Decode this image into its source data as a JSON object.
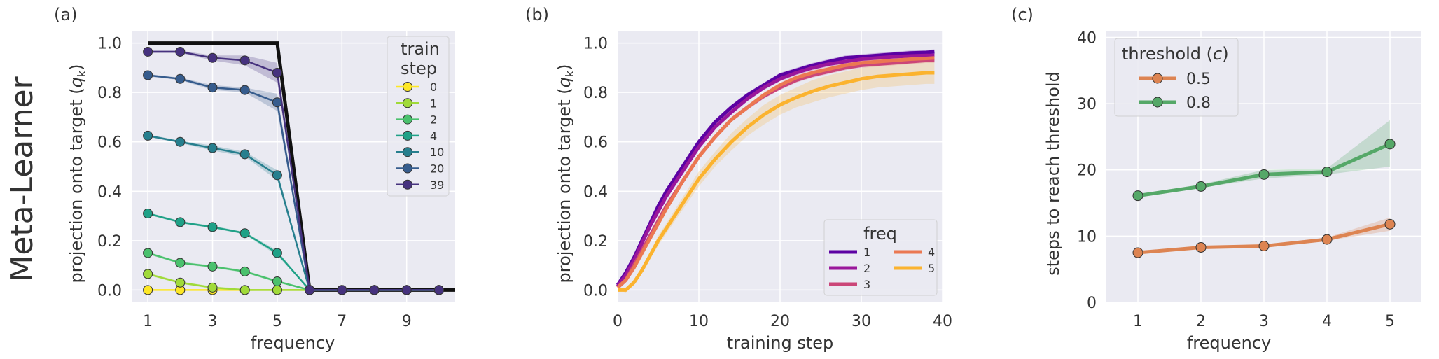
{
  "row_label": "Meta-Learner",
  "colors": {
    "plot_bg": "#eaeaf2",
    "grid": "#ffffff",
    "target_line": "#111111",
    "legend_frame": "#cccccc"
  },
  "chart_data": [
    {
      "panel_label": "(a)",
      "type": "line",
      "xlabel": "frequency",
      "ylabel": "projection onto target (q_k)",
      "ylabel_parts": {
        "main": "projection onto target (",
        "symbol": "q",
        "sub": "k",
        "close": ")"
      },
      "xlim": [
        0.5,
        10.5
      ],
      "ylim": [
        -0.05,
        1.05
      ],
      "xticks": [
        1,
        3,
        5,
        7,
        9
      ],
      "yticks": [
        0.0,
        0.2,
        0.4,
        0.6,
        0.8,
        1.0
      ],
      "ytick_labels": [
        "0.0",
        "0.2",
        "0.4",
        "0.6",
        "0.8",
        "1.0"
      ],
      "x": [
        1,
        2,
        3,
        4,
        5,
        6,
        7,
        8,
        9,
        10
      ],
      "target": {
        "x": [
          1,
          5,
          6,
          10.5
        ],
        "y": [
          1.0,
          1.0,
          0.0,
          0.0
        ]
      },
      "legend": {
        "title_lines": [
          "train",
          "step"
        ],
        "placement": "top-right"
      },
      "series": [
        {
          "name": "0",
          "color": "#fde725",
          "values": [
            0.0,
            0.0,
            0.0,
            0.0,
            0.0,
            0.0,
            0.0,
            0.0,
            0.0,
            0.0
          ],
          "band": [
            0,
            0,
            0,
            0,
            0,
            0,
            0,
            0,
            0,
            0
          ]
        },
        {
          "name": "1",
          "color": "#a0da39",
          "values": [
            0.065,
            0.03,
            0.01,
            0.0,
            0.0,
            0.0,
            0.0,
            0.0,
            0.0,
            0.0
          ],
          "band": [
            0.005,
            0.005,
            0.005,
            0.005,
            0,
            0,
            0,
            0,
            0,
            0
          ]
        },
        {
          "name": "2",
          "color": "#4ac16d",
          "values": [
            0.15,
            0.11,
            0.095,
            0.075,
            0.035,
            0.0,
            0.0,
            0.0,
            0.0,
            0.0
          ],
          "band": [
            0.005,
            0.005,
            0.005,
            0.005,
            0.005,
            0,
            0,
            0,
            0,
            0
          ]
        },
        {
          "name": "4",
          "color": "#1fa187",
          "values": [
            0.31,
            0.275,
            0.255,
            0.23,
            0.15,
            0.0,
            0.0,
            0.0,
            0.0,
            0.0
          ],
          "band": [
            0.005,
            0.005,
            0.005,
            0.005,
            0.01,
            0,
            0,
            0,
            0,
            0
          ]
        },
        {
          "name": "10",
          "color": "#277f8e",
          "values": [
            0.625,
            0.6,
            0.575,
            0.55,
            0.465,
            0.0,
            0.0,
            0.0,
            0.0,
            0.0
          ],
          "band": [
            0.005,
            0.005,
            0.01,
            0.01,
            0.02,
            0,
            0,
            0,
            0,
            0
          ]
        },
        {
          "name": "20",
          "color": "#365c8d",
          "values": [
            0.87,
            0.855,
            0.82,
            0.81,
            0.76,
            0.0,
            0.0,
            0.0,
            0.0,
            0.0
          ],
          "band": [
            0.005,
            0.005,
            0.01,
            0.01,
            0.035,
            0,
            0,
            0,
            0,
            0
          ]
        },
        {
          "name": "39",
          "color": "#46327e",
          "values": [
            0.965,
            0.965,
            0.94,
            0.93,
            0.88,
            0.0,
            0.0,
            0.0,
            0.0,
            0.0
          ],
          "band": [
            0.005,
            0.005,
            0.01,
            0.02,
            0.04,
            0,
            0,
            0,
            0,
            0
          ]
        }
      ]
    },
    {
      "panel_label": "(b)",
      "type": "line",
      "xlabel": "training step",
      "ylabel": "projection onto target (q_k)",
      "ylabel_parts": {
        "main": "projection onto target (",
        "symbol": "q",
        "sub": "k",
        "close": ")"
      },
      "xlim": [
        0,
        40
      ],
      "ylim": [
        -0.05,
        1.05
      ],
      "xticks": [
        0,
        10,
        20,
        30,
        40
      ],
      "yticks": [
        0.0,
        0.2,
        0.4,
        0.6,
        0.8,
        1.0
      ],
      "ytick_labels": [
        "0.0",
        "0.2",
        "0.4",
        "0.6",
        "0.8",
        "1.0"
      ],
      "x": [
        0,
        1,
        2,
        3,
        4,
        5,
        6,
        8,
        10,
        12,
        14,
        16,
        18,
        20,
        22,
        24,
        26,
        28,
        30,
        32,
        34,
        36,
        38,
        39
      ],
      "legend": {
        "title": "freq",
        "placement": "lower-right",
        "columns": 2
      },
      "series": [
        {
          "name": "1",
          "color": "#5c02a3",
          "values": [
            0.02,
            0.07,
            0.13,
            0.2,
            0.27,
            0.34,
            0.4,
            0.5,
            0.6,
            0.68,
            0.74,
            0.79,
            0.83,
            0.87,
            0.89,
            0.91,
            0.925,
            0.94,
            0.945,
            0.95,
            0.955,
            0.96,
            0.962,
            0.965
          ],
          "band": [
            0.01,
            0.01,
            0.01,
            0.01,
            0.01,
            0.01,
            0.01,
            0.01,
            0.01,
            0.01,
            0.01,
            0.01,
            0.01,
            0.01,
            0.01,
            0.01,
            0.01,
            0.01,
            0.01,
            0.01,
            0.01,
            0.01,
            0.01,
            0.01
          ]
        },
        {
          "name": "2",
          "color": "#9a179b",
          "values": [
            0.015,
            0.06,
            0.12,
            0.19,
            0.26,
            0.32,
            0.38,
            0.48,
            0.58,
            0.66,
            0.72,
            0.775,
            0.82,
            0.855,
            0.88,
            0.9,
            0.915,
            0.925,
            0.935,
            0.94,
            0.945,
            0.948,
            0.95,
            0.95
          ],
          "band": [
            0.01,
            0.01,
            0.01,
            0.01,
            0.01,
            0.01,
            0.01,
            0.01,
            0.01,
            0.01,
            0.01,
            0.01,
            0.01,
            0.01,
            0.01,
            0.01,
            0.01,
            0.01,
            0.01,
            0.01,
            0.01,
            0.01,
            0.01,
            0.01
          ]
        },
        {
          "name": "3",
          "color": "#cb4678",
          "values": [
            0.01,
            0.04,
            0.1,
            0.16,
            0.22,
            0.28,
            0.34,
            0.44,
            0.54,
            0.62,
            0.69,
            0.74,
            0.785,
            0.82,
            0.85,
            0.87,
            0.885,
            0.9,
            0.91,
            0.915,
            0.92,
            0.925,
            0.93,
            0.93
          ],
          "band": [
            0.01,
            0.01,
            0.01,
            0.01,
            0.01,
            0.01,
            0.01,
            0.01,
            0.01,
            0.01,
            0.01,
            0.01,
            0.01,
            0.01,
            0.01,
            0.01,
            0.01,
            0.01,
            0.01,
            0.01,
            0.01,
            0.01,
            0.01,
            0.01
          ]
        },
        {
          "name": "4",
          "color": "#eb7852",
          "values": [
            0.01,
            0.04,
            0.09,
            0.15,
            0.21,
            0.27,
            0.33,
            0.44,
            0.54,
            0.62,
            0.69,
            0.74,
            0.79,
            0.83,
            0.86,
            0.88,
            0.895,
            0.91,
            0.92,
            0.925,
            0.93,
            0.935,
            0.938,
            0.94
          ],
          "band": [
            0.01,
            0.01,
            0.01,
            0.01,
            0.01,
            0.01,
            0.01,
            0.01,
            0.01,
            0.01,
            0.01,
            0.01,
            0.01,
            0.01,
            0.01,
            0.01,
            0.01,
            0.01,
            0.01,
            0.01,
            0.01,
            0.01,
            0.01,
            0.01
          ]
        },
        {
          "name": "5",
          "color": "#fbb32f",
          "values": [
            0.0,
            0.0,
            0.03,
            0.08,
            0.14,
            0.2,
            0.25,
            0.35,
            0.45,
            0.53,
            0.6,
            0.66,
            0.71,
            0.75,
            0.78,
            0.805,
            0.825,
            0.84,
            0.855,
            0.865,
            0.87,
            0.875,
            0.88,
            0.88
          ],
          "band": [
            0,
            0.01,
            0.01,
            0.01,
            0.015,
            0.02,
            0.02,
            0.025,
            0.03,
            0.03,
            0.035,
            0.035,
            0.04,
            0.04,
            0.04,
            0.045,
            0.045,
            0.045,
            0.045,
            0.045,
            0.045,
            0.045,
            0.045,
            0.045
          ]
        }
      ]
    },
    {
      "panel_label": "(c)",
      "type": "line",
      "xlabel": "frequency",
      "ylabel": "steps to reach threshold",
      "xlim": [
        0.5,
        5.5
      ],
      "ylim": [
        0,
        41
      ],
      "xticks": [
        1,
        2,
        3,
        4,
        5
      ],
      "yticks": [
        0,
        10,
        20,
        30,
        40
      ],
      "ytick_labels": [
        "0",
        "10",
        "20",
        "30",
        "40"
      ],
      "x": [
        1,
        2,
        3,
        4,
        5
      ],
      "legend": {
        "title_main": "threshold (",
        "title_symbol": "c",
        "title_close": ")",
        "placement": "top-left"
      },
      "series": [
        {
          "name": "0.5",
          "color": "#dd8452",
          "values": [
            7.5,
            8.3,
            8.5,
            9.5,
            11.8
          ],
          "lower": [
            7.5,
            8.2,
            8.4,
            9.3,
            10.8
          ],
          "upper": [
            7.6,
            8.5,
            8.7,
            9.8,
            12.8
          ]
        },
        {
          "name": "0.8",
          "color": "#55a868",
          "values": [
            16.1,
            17.5,
            19.3,
            19.7,
            23.9
          ],
          "lower": [
            16.0,
            17.3,
            18.7,
            19.3,
            20.5
          ],
          "upper": [
            16.3,
            17.8,
            20.0,
            20.2,
            27.5
          ]
        }
      ]
    }
  ]
}
